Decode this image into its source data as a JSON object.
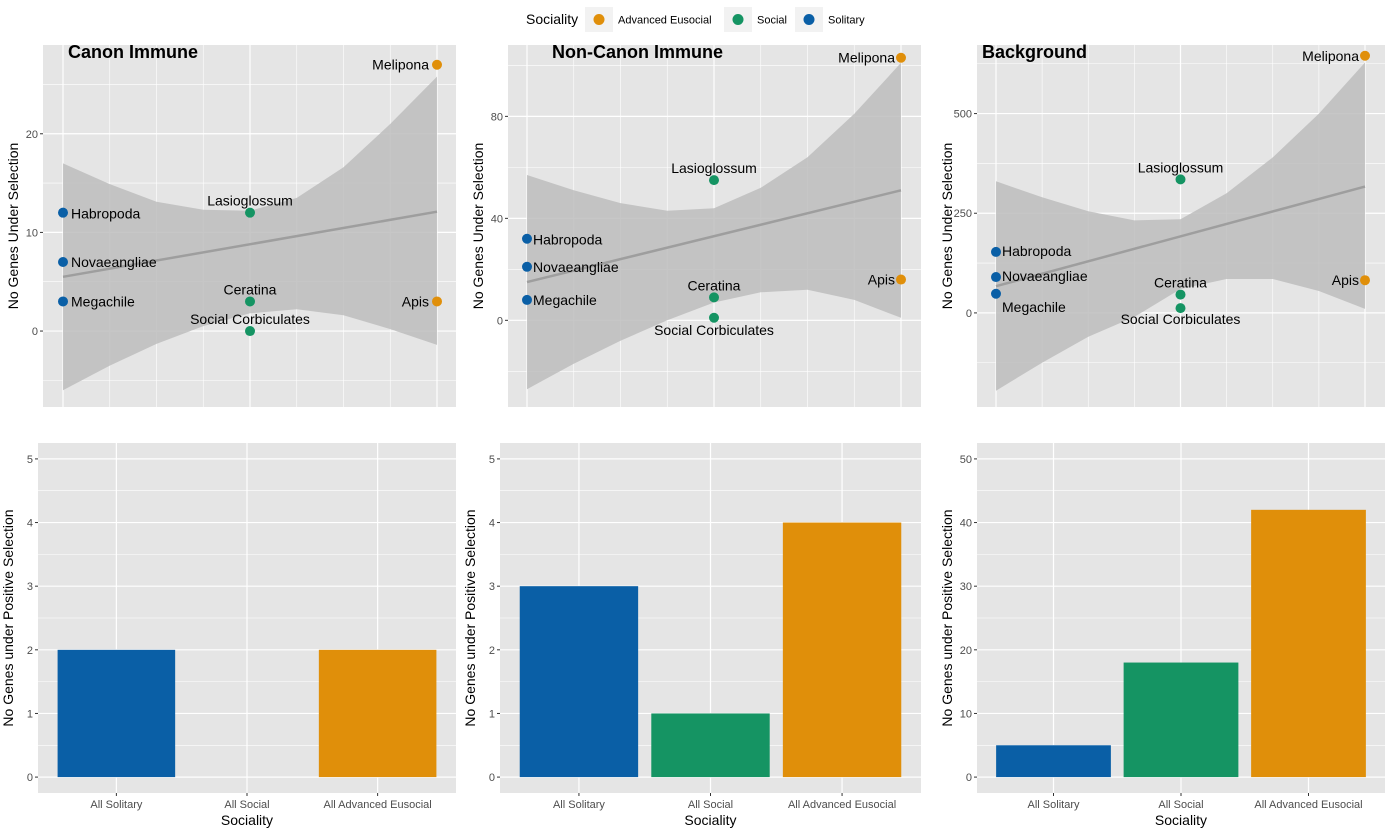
{
  "legend": {
    "title": "Sociality",
    "entries": [
      {
        "label": "Advanced Eusocial",
        "color": "#E69F00"
      },
      {
        "label": "Social",
        "color": "#009E73"
      },
      {
        "label": "Solitary",
        "color": "#0072B2"
      }
    ]
  },
  "colors": {
    "Advanced Eusocial": "#E08F0A",
    "Social": "#159463",
    "Solitary": "#0A5FA6",
    "panel_bg": "#e5e5e5",
    "grid": "#ffffff",
    "ribbon": "#bdbdbd",
    "trend": "#9e9e9e"
  },
  "chart_data": [
    {
      "type": "scatter",
      "title": "Canon Immune",
      "ylabel": "No Genes Under Selection",
      "xlabel": "",
      "ylim": [
        -7.7,
        29
      ],
      "yticks": [
        0,
        10,
        20
      ],
      "points": [
        {
          "label": "Habropoda",
          "x": 0,
          "y": 12,
          "group": "Solitary"
        },
        {
          "label": "Novaeangliae",
          "x": 0,
          "y": 7,
          "group": "Solitary"
        },
        {
          "label": "Megachile",
          "x": 0,
          "y": 3,
          "group": "Solitary"
        },
        {
          "label": "Lasioglossum",
          "x": 1,
          "y": 12,
          "group": "Social"
        },
        {
          "label": "Ceratina",
          "x": 1,
          "y": 3,
          "group": "Social"
        },
        {
          "label": "Social Corbiculates",
          "x": 1,
          "y": 0,
          "group": "Social"
        },
        {
          "label": "Melipona",
          "x": 2,
          "y": 27,
          "group": "Advanced Eusocial"
        },
        {
          "label": "Apis",
          "x": 2,
          "y": 3,
          "group": "Advanced Eusocial"
        }
      ],
      "trend": {
        "x": [
          0,
          2
        ],
        "y": [
          5.5,
          12.1
        ]
      },
      "ribbon": {
        "x": [
          0,
          0.25,
          0.5,
          0.75,
          1,
          1.25,
          1.5,
          1.75,
          2
        ],
        "lower": [
          -6,
          -3.5,
          -1.3,
          0.5,
          1.8,
          2.2,
          1.6,
          0.2,
          -1.4
        ],
        "upper": [
          17,
          14.9,
          13.1,
          12.3,
          12.2,
          13.5,
          16.6,
          21,
          25.8
        ]
      }
    },
    {
      "type": "scatter",
      "title": "Non-Canon Immune",
      "ylabel": "No Genes Under Selection",
      "xlabel": "",
      "ylim": [
        -34,
        108
      ],
      "yticks": [
        0,
        40,
        80
      ],
      "points": [
        {
          "label": "Habropoda",
          "x": 0,
          "y": 32,
          "group": "Solitary"
        },
        {
          "label": "Novaeangliae",
          "x": 0,
          "y": 21,
          "group": "Solitary"
        },
        {
          "label": "Megachile",
          "x": 0,
          "y": 8,
          "group": "Solitary"
        },
        {
          "label": "Lasioglossum",
          "x": 1,
          "y": 55,
          "group": "Social"
        },
        {
          "label": "Ceratina",
          "x": 1,
          "y": 9,
          "group": "Social"
        },
        {
          "label": "Social Corbiculates",
          "x": 1,
          "y": 1,
          "group": "Social"
        },
        {
          "label": "Melipona",
          "x": 2,
          "y": 103,
          "group": "Advanced Eusocial"
        },
        {
          "label": "Apis",
          "x": 2,
          "y": 16,
          "group": "Advanced Eusocial"
        }
      ],
      "trend": {
        "x": [
          0,
          2
        ],
        "y": [
          15,
          51
        ]
      },
      "ribbon": {
        "x": [
          0,
          0.25,
          0.5,
          0.75,
          1,
          1.25,
          1.5,
          1.75,
          2
        ],
        "lower": [
          -27,
          -17,
          -8,
          0,
          7,
          11,
          12,
          8,
          1
        ],
        "upper": [
          57,
          51,
          46,
          43,
          44,
          52,
          64,
          81,
          101
        ]
      }
    },
    {
      "type": "scatter",
      "title": "Background",
      "ylabel": "No Genes Under Selection",
      "xlabel": "",
      "ylim": [
        -236,
        672
      ],
      "yticks": [
        0,
        250,
        500
      ],
      "points": [
        {
          "label": "Habropoda",
          "x": 0,
          "y": 153,
          "group": "Solitary"
        },
        {
          "label": "Novaeangliae",
          "x": 0,
          "y": 90,
          "group": "Solitary"
        },
        {
          "label": "Megachile",
          "x": 0,
          "y": 48,
          "group": "Solitary"
        },
        {
          "label": "Lasioglossum",
          "x": 1,
          "y": 335,
          "group": "Social"
        },
        {
          "label": "Ceratina",
          "x": 1,
          "y": 46,
          "group": "Social"
        },
        {
          "label": "Social Corbiculates",
          "x": 1,
          "y": 12,
          "group": "Social"
        },
        {
          "label": "Melipona",
          "x": 2,
          "y": 645,
          "group": "Advanced Eusocial"
        },
        {
          "label": "Apis",
          "x": 2,
          "y": 82,
          "group": "Advanced Eusocial"
        }
      ],
      "trend": {
        "x": [
          0,
          2
        ],
        "y": [
          67,
          317
        ]
      },
      "ribbon": {
        "x": [
          0,
          0.25,
          0.5,
          0.75,
          1,
          1.25,
          1.5,
          1.75,
          2
        ],
        "lower": [
          -195,
          -125,
          -60,
          -10,
          60,
          85,
          85,
          55,
          10
        ],
        "upper": [
          330,
          290,
          255,
          232,
          235,
          300,
          390,
          500,
          628
        ]
      }
    },
    {
      "type": "bar",
      "title": "",
      "ylabel": "No Genes under Positive Selection",
      "xlabel": "Sociality",
      "categories": [
        "All Solitary",
        "All Social",
        "All Advanced Eusocial"
      ],
      "groups": [
        "Solitary",
        "Social",
        "Advanced Eusocial"
      ],
      "values": [
        2,
        0,
        2
      ],
      "ylim": [
        -0.25,
        5.25
      ],
      "yticks": [
        0,
        1,
        2,
        3,
        4,
        5
      ]
    },
    {
      "type": "bar",
      "title": "",
      "ylabel": "No Genes under Positive Selection",
      "xlabel": "Sociality",
      "categories": [
        "All Solitary",
        "All Social",
        "All Advanced Eusocial"
      ],
      "groups": [
        "Solitary",
        "Social",
        "Advanced Eusocial"
      ],
      "values": [
        3,
        1,
        4
      ],
      "ylim": [
        -0.25,
        5.25
      ],
      "yticks": [
        0,
        1,
        2,
        3,
        4,
        5
      ]
    },
    {
      "type": "bar",
      "title": "",
      "ylabel": "No Genes under Positive Selection",
      "xlabel": "Sociality",
      "categories": [
        "All Solitary",
        "All Social",
        "All Advanced Eusocial"
      ],
      "groups": [
        "Solitary",
        "Social",
        "Advanced Eusocial"
      ],
      "values": [
        5,
        18,
        42
      ],
      "ylim": [
        -2.5,
        52.5
      ],
      "yticks": [
        0,
        10,
        20,
        30,
        40,
        50
      ]
    }
  ]
}
